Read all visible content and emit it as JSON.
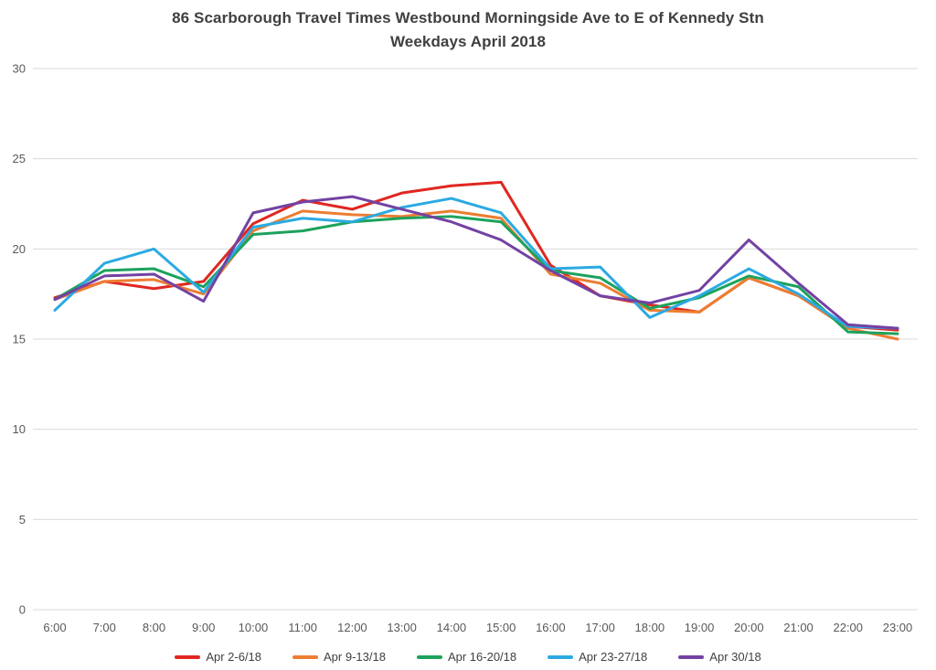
{
  "chart_data": {
    "type": "line",
    "title": "86 Scarborough Travel Times Westbound Morningside Ave to E of Kennedy Stn Weekdays April 2018",
    "title_lines": [
      "86 Scarborough Travel Times Westbound Morningside Ave to E of Kennedy Stn",
      "Weekdays April 2018"
    ],
    "xlabel": "",
    "ylabel": "",
    "x": [
      "6:00",
      "7:00",
      "8:00",
      "9:00",
      "10:00",
      "11:00",
      "12:00",
      "13:00",
      "14:00",
      "15:00",
      "16:00",
      "17:00",
      "18:00",
      "19:00",
      "20:00",
      "21:00",
      "22:00",
      "23:00"
    ],
    "ylim": [
      0,
      30
    ],
    "ytick_step": 5,
    "ytick_labels": [
      "0",
      "5",
      "10",
      "15",
      "20",
      "25",
      "30"
    ],
    "grid": "horizontal-only",
    "legend_position": "bottom-center",
    "series": [
      {
        "name": "Apr 2-6/18",
        "color": "#E02721",
        "values": [
          17.3,
          18.2,
          17.8,
          18.2,
          21.4,
          22.7,
          22.2,
          23.1,
          23.5,
          23.7,
          19.1,
          17.4,
          16.9,
          16.5,
          18.4,
          17.4,
          15.7,
          15.5
        ]
      },
      {
        "name": "Apr 9-13/18",
        "color": "#ED7D31",
        "values": [
          17.2,
          18.2,
          18.3,
          17.5,
          21.0,
          22.1,
          21.9,
          21.8,
          22.1,
          21.7,
          18.6,
          18.1,
          16.6,
          16.5,
          18.4,
          17.4,
          15.6,
          15.0
        ]
      },
      {
        "name": "Apr 16-20/18",
        "color": "#1CA25C",
        "values": [
          17.2,
          18.8,
          18.9,
          17.9,
          20.8,
          21.0,
          21.5,
          21.7,
          21.8,
          21.5,
          18.8,
          18.4,
          16.7,
          17.3,
          18.5,
          17.9,
          15.4,
          15.3
        ]
      },
      {
        "name": "Apr 23-27/18",
        "color": "#2BAAE2",
        "values": [
          16.6,
          19.2,
          20.0,
          17.6,
          21.2,
          21.7,
          21.5,
          22.3,
          22.8,
          22.0,
          18.9,
          19.0,
          16.2,
          17.4,
          18.9,
          17.5,
          15.7,
          15.6
        ]
      },
      {
        "name": "Apr 30/18",
        "color": "#7342A3",
        "values": [
          17.2,
          18.5,
          18.6,
          17.1,
          22.0,
          22.6,
          22.9,
          22.2,
          21.5,
          20.5,
          18.8,
          17.4,
          17.0,
          17.7,
          20.5,
          18.1,
          15.8,
          15.6
        ]
      }
    ],
    "style": {
      "grid_color": "#D9D9D9",
      "tick_label_color": "#595959",
      "title_color": "#404040",
      "line_width": 3
    }
  }
}
